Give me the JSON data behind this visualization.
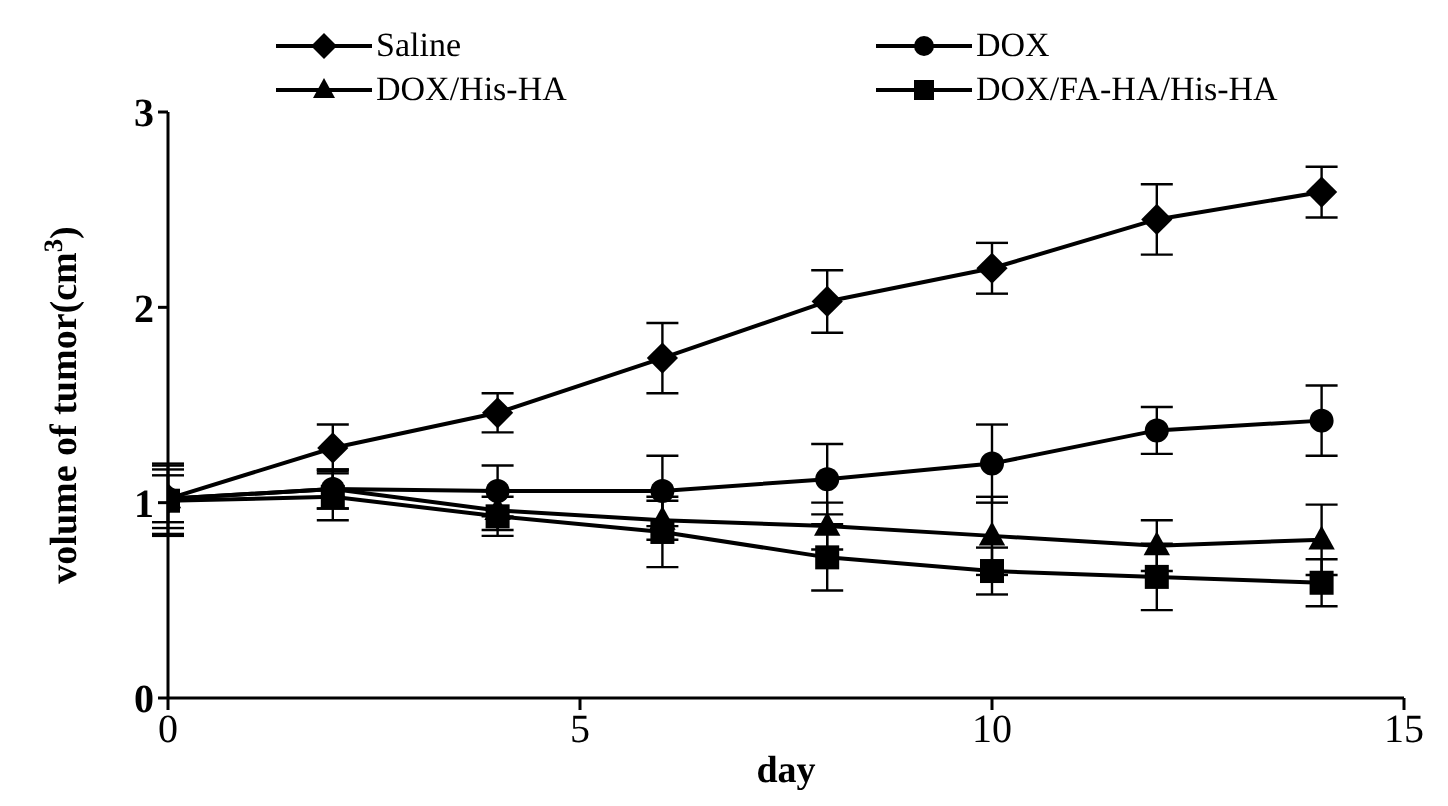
{
  "chart_data": {
    "type": "line",
    "xlabel": "day",
    "ylabel": "volume of tumor(cm$^{3}$)",
    "x": [
      0,
      2,
      4,
      6,
      8,
      10,
      12,
      14
    ],
    "xlim": [
      0,
      15
    ],
    "xticks": [
      0,
      5,
      10,
      15
    ],
    "ylim": [
      0,
      3
    ],
    "yticks": [
      0,
      1,
      2,
      3
    ],
    "grid": false,
    "legend": "top",
    "series": [
      {
        "name": "Saline",
        "color": "#000000",
        "marker": "diamond",
        "values": [
          1.02,
          1.28,
          1.46,
          1.74,
          2.03,
          2.2,
          2.45,
          2.59
        ],
        "errors": [
          0.12,
          0.12,
          0.1,
          0.18,
          0.16,
          0.13,
          0.18,
          0.13
        ]
      },
      {
        "name": "DOX",
        "color": "#000000",
        "marker": "circle",
        "values": [
          1.02,
          1.07,
          1.06,
          1.06,
          1.12,
          1.2,
          1.37,
          1.42
        ],
        "errors": [
          0.18,
          0.1,
          0.13,
          0.18,
          0.18,
          0.2,
          0.12,
          0.18
        ]
      },
      {
        "name": "DOX/His-HA",
        "color": "#000000",
        "marker": "triangle",
        "values": [
          1.02,
          1.07,
          0.96,
          0.91,
          0.88,
          0.83,
          0.78,
          0.81
        ],
        "errors": [
          0.15,
          0.1,
          0.1,
          0.1,
          0.12,
          0.2,
          0.13,
          0.18
        ]
      },
      {
        "name": "DOX/FA-HA/His-HA",
        "color": "#000000",
        "marker": "square",
        "values": [
          1.01,
          1.03,
          0.93,
          0.85,
          0.72,
          0.65,
          0.62,
          0.59
        ],
        "errors": [
          0.18,
          0.12,
          0.1,
          0.18,
          0.17,
          0.12,
          0.17,
          0.12
        ]
      }
    ]
  }
}
